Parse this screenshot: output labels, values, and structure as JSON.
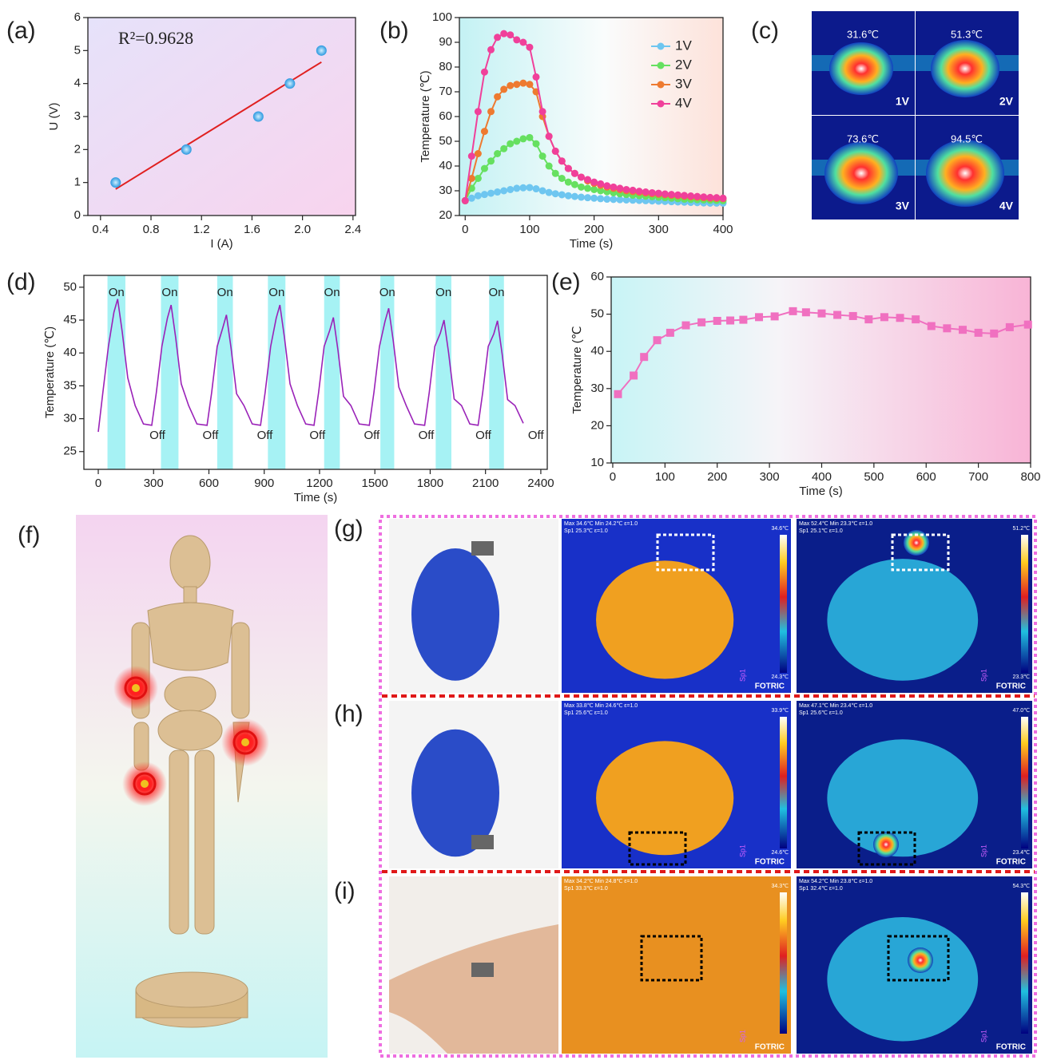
{
  "panel_labels": [
    "(a)",
    "(b)",
    "(c)",
    "(d)",
    "(e)",
    "(f)",
    "(g)",
    "(h)",
    "(i)"
  ],
  "chart_data": [
    {
      "type": "scatter",
      "xlabel": "I (A)",
      "ylabel": "U (V)",
      "annotation": "R²=0.9628",
      "x": [
        0.52,
        1.08,
        1.65,
        1.9,
        2.15
      ],
      "values": [
        1,
        2,
        3,
        4,
        5
      ],
      "color": "#3aa8e8",
      "fit": {
        "x": [
          0.52,
          2.15
        ],
        "values": [
          0.8,
          4.65
        ],
        "color": "#e02020"
      },
      "xlim": [
        0.3,
        2.42
      ],
      "ylim": [
        0,
        6
      ],
      "xticks": [
        0.4,
        0.8,
        1.2,
        1.6,
        {
          "value": 2,
          "label": "2.0"
        },
        2.4
      ],
      "yticks": [
        0,
        1,
        2,
        3,
        4,
        5,
        6
      ]
    },
    {
      "type": "line",
      "xlabel": "Time (s)",
      "ylabel": "Temperature (℃)",
      "markers": "circle",
      "legend": "top-right",
      "x": [
        0,
        10,
        20,
        30,
        40,
        50,
        60,
        70,
        80,
        90,
        100,
        110,
        120,
        130,
        140,
        150,
        160,
        170,
        180,
        190,
        200,
        210,
        220,
        230,
        240,
        250,
        260,
        270,
        280,
        290,
        300,
        310,
        320,
        330,
        340,
        350,
        360,
        370,
        380,
        390,
        400
      ],
      "series": [
        {
          "name": "1V",
          "color": "#6ec6f0",
          "values": [
            26,
            27,
            28,
            28.5,
            29,
            29.5,
            30,
            30.5,
            31,
            31.2,
            31.3,
            30.8,
            30,
            29.3,
            28.8,
            28.4,
            28,
            27.7,
            27.4,
            27.2,
            27,
            26.8,
            26.6,
            26.5,
            26.4,
            26.3,
            26.2,
            26.1,
            26,
            25.9,
            25.8,
            25.7,
            25.6,
            25.5,
            25.4,
            25.3,
            25.2,
            25.1,
            25,
            25,
            25
          ]
        },
        {
          "name": "2V",
          "color": "#66e060",
          "values": [
            26,
            31,
            35,
            39,
            42,
            45,
            47,
            49,
            50,
            51,
            51.5,
            49,
            44,
            40,
            37,
            35,
            33.5,
            32.5,
            31.5,
            31,
            30.5,
            30,
            29.6,
            29.2,
            28.8,
            28.5,
            28.2,
            28,
            27.8,
            27.6,
            27.4,
            27.2,
            27,
            26.8,
            26.6,
            26.5,
            26.4,
            26.3,
            26.2,
            26.1,
            26
          ]
        },
        {
          "name": "3V",
          "color": "#ee7a30",
          "values": [
            26,
            35,
            45,
            54,
            62,
            68,
            71,
            72.5,
            73,
            73.5,
            73,
            70,
            60,
            52,
            46,
            42,
            39,
            37,
            35.5,
            34,
            33,
            32.2,
            31.5,
            31,
            30.5,
            30,
            29.7,
            29.4,
            29.1,
            28.8,
            28.6,
            28.4,
            28.2,
            28,
            27.8,
            27.6,
            27.4,
            27.2,
            27,
            26.9,
            26.8
          ]
        },
        {
          "name": "4V",
          "color": "#f0409a",
          "values": [
            26,
            44,
            62,
            78,
            87,
            92,
            93.5,
            93,
            91,
            90,
            88,
            76,
            62,
            52,
            46,
            42,
            39,
            37,
            35.5,
            34.5,
            33.5,
            32.8,
            32,
            31.5,
            31,
            30.5,
            30.2,
            29.8,
            29.5,
            29.2,
            29,
            28.7,
            28.5,
            28.3,
            28.1,
            27.9,
            27.7,
            27.5,
            27.3,
            27.2,
            27
          ]
        }
      ],
      "xlim": [
        -9,
        400
      ],
      "ylim": [
        20,
        100
      ],
      "xticks": [
        0,
        100,
        200,
        300,
        400
      ],
      "yticks": [
        20,
        30,
        40,
        50,
        60,
        70,
        80,
        90,
        100
      ]
    },
    {
      "type": "line",
      "xlabel": "Time (s)",
      "ylabel": "Temperature (℃)",
      "on_label": "On",
      "off_label": "Off",
      "bands": [
        [
          50,
          147
        ],
        [
          340,
          435
        ],
        [
          645,
          730
        ],
        [
          920,
          1015
        ],
        [
          1225,
          1310
        ],
        [
          1530,
          1605
        ],
        [
          1830,
          1915
        ],
        [
          2120,
          2200
        ]
      ],
      "x": [
        0,
        25,
        55,
        85,
        105,
        130,
        160,
        200,
        245,
        290,
        315,
        345,
        375,
        395,
        420,
        450,
        490,
        535,
        590,
        615,
        645,
        675,
        695,
        720,
        750,
        790,
        835,
        880,
        905,
        935,
        965,
        985,
        1010,
        1040,
        1080,
        1125,
        1170,
        1195,
        1225,
        1255,
        1275,
        1300,
        1330,
        1370,
        1415,
        1470,
        1495,
        1525,
        1555,
        1575,
        1600,
        1630,
        1670,
        1715,
        1770,
        1795,
        1825,
        1855,
        1875,
        1900,
        1930,
        1970,
        2015,
        2060,
        2085,
        2115,
        2145,
        2165,
        2190,
        2220,
        2260,
        2305
      ],
      "series": [
        {
          "name": "Temperature",
          "color": "#9a22b8",
          "values": [
            28,
            34,
            41,
            46.2,
            48.2,
            43.2,
            36.2,
            32,
            29.2,
            29,
            34,
            41,
            45.3,
            47.3,
            42.3,
            35.3,
            32,
            29.2,
            29,
            34,
            41,
            43.8,
            45.8,
            40.8,
            33.8,
            32,
            29.2,
            29,
            34,
            41,
            45.3,
            47.3,
            42.3,
            35.3,
            32,
            29.2,
            29,
            34,
            41,
            43.4,
            45.4,
            40.4,
            33.4,
            32,
            29.2,
            29,
            34,
            41,
            44.8,
            46.8,
            41.8,
            34.8,
            32,
            29.2,
            29,
            34,
            41,
            43,
            45,
            40,
            33,
            32,
            29.2,
            29,
            34,
            41,
            42.9,
            44.9,
            39.9,
            32.9,
            32,
            29.3
          ]
        }
      ],
      "xlim": [
        -78,
        2435
      ],
      "ylim": [
        22.3,
        51.8
      ],
      "xticks": [
        0,
        300,
        600,
        900,
        1200,
        1500,
        1800,
        2100,
        2400
      ],
      "yticks": [
        25,
        30,
        35,
        40,
        45,
        50
      ]
    },
    {
      "type": "line",
      "xlabel": "Time (s)",
      "ylabel": "Temperature (℃",
      "markers": "square",
      "x": [
        10,
        40,
        60,
        85,
        110,
        140,
        170,
        200,
        225,
        250,
        280,
        310,
        345,
        370,
        400,
        430,
        460,
        490,
        520,
        550,
        580,
        610,
        640,
        670,
        700,
        730,
        760,
        795
      ],
      "series": [
        {
          "name": "Temperature",
          "color": "#f070c0",
          "values": [
            28.5,
            33.5,
            38.5,
            43,
            45,
            47,
            47.8,
            48.2,
            48.3,
            48.5,
            49.2,
            49.4,
            50.8,
            50.5,
            50.2,
            49.8,
            49.5,
            48.6,
            49.2,
            49,
            48.6,
            46.8,
            46.2,
            45.8,
            45,
            44.8,
            46.5,
            47.2
          ]
        }
      ],
      "xlim": [
        -3,
        800
      ],
      "ylim": [
        10,
        60
      ],
      "xticks": [
        0,
        100,
        200,
        300,
        400,
        500,
        600,
        700,
        800
      ],
      "yticks": [
        10,
        20,
        30,
        40,
        50,
        60
      ]
    }
  ],
  "thermal_grid": [
    {
      "temp": "31.6℃",
      "voltage": "1V"
    },
    {
      "temp": "51.3℃",
      "voltage": "2V"
    },
    {
      "temp": "73.6℃",
      "voltage": "3V"
    },
    {
      "temp": "94.5℃",
      "voltage": "4V"
    }
  ],
  "spot_marker": "Sp1",
  "brand": "FOTRIC",
  "thermal_rows": [
    [
      {
        "header": "Max 34.6℃ Min 24.2℃ ε=1.0",
        "spot": "Sp1 25.3℃ ε=1.0",
        "scale_max": "34.6℃",
        "scale_min": "24.3℃"
      },
      {
        "header": "Max 52.4℃ Min 23.3℃ ε=1.0",
        "spot": "Sp1 25.1℃ ε=1.0",
        "scale_max": "51.2℃",
        "scale_min": "23.3℃"
      }
    ],
    [
      {
        "header": "Max 33.8℃ Min 24.6℃ ε=1.0",
        "spot": "Sp1 25.6℃ ε=1.0",
        "scale_max": "33.9℃",
        "scale_min": "24.6℃"
      },
      {
        "header": "Max 47.1℃ Min 23.4℃ ε=1.0",
        "spot": "Sp1 25.6℃ ε=1.0",
        "scale_max": "47.0℃",
        "scale_min": "23.4℃"
      }
    ],
    [
      {
        "header": "Max 34.2℃ Min 24.8℃ ε=1.0",
        "spot": "Sp1 33.3℃ ε=1.0",
        "scale_max": "34.3℃"
      },
      {
        "header": "Max 54.2℃ Min 23.8℃ ε=1.0",
        "spot": "Sp1 32.4℃ ε=1.0",
        "scale_max": "54.3℃"
      }
    ]
  ]
}
